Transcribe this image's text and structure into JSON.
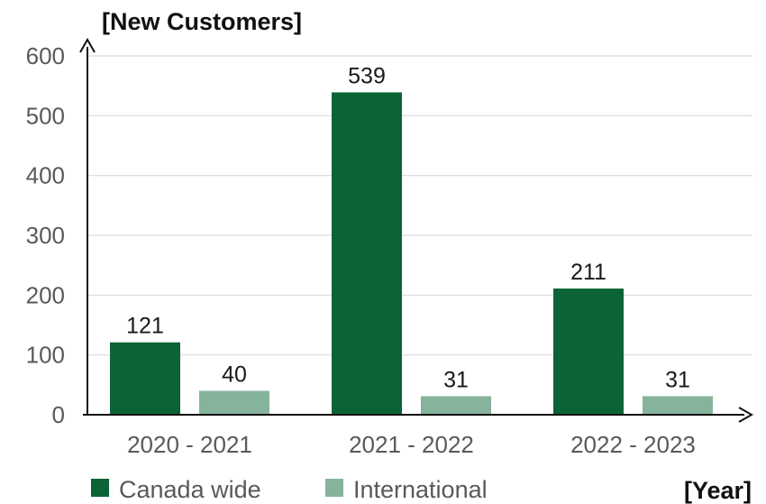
{
  "chart_data": {
    "type": "bar",
    "ylabel": "[New Customers]",
    "xlabel": "[Year]",
    "categories": [
      "2020 - 2021",
      "2021 - 2022",
      "2022 - 2023"
    ],
    "series": [
      {
        "name": "Canada wide",
        "values": [
          121,
          539,
          211
        ],
        "color": "#0b6336"
      },
      {
        "name": "International",
        "values": [
          40,
          31,
          31
        ],
        "color": "#86b39b"
      }
    ],
    "ylim": [
      0,
      600
    ],
    "yticks": [
      0,
      100,
      200,
      300,
      400,
      500,
      600
    ],
    "grid": true,
    "legend_position": "bottom-left",
    "show_data_labels": true
  }
}
